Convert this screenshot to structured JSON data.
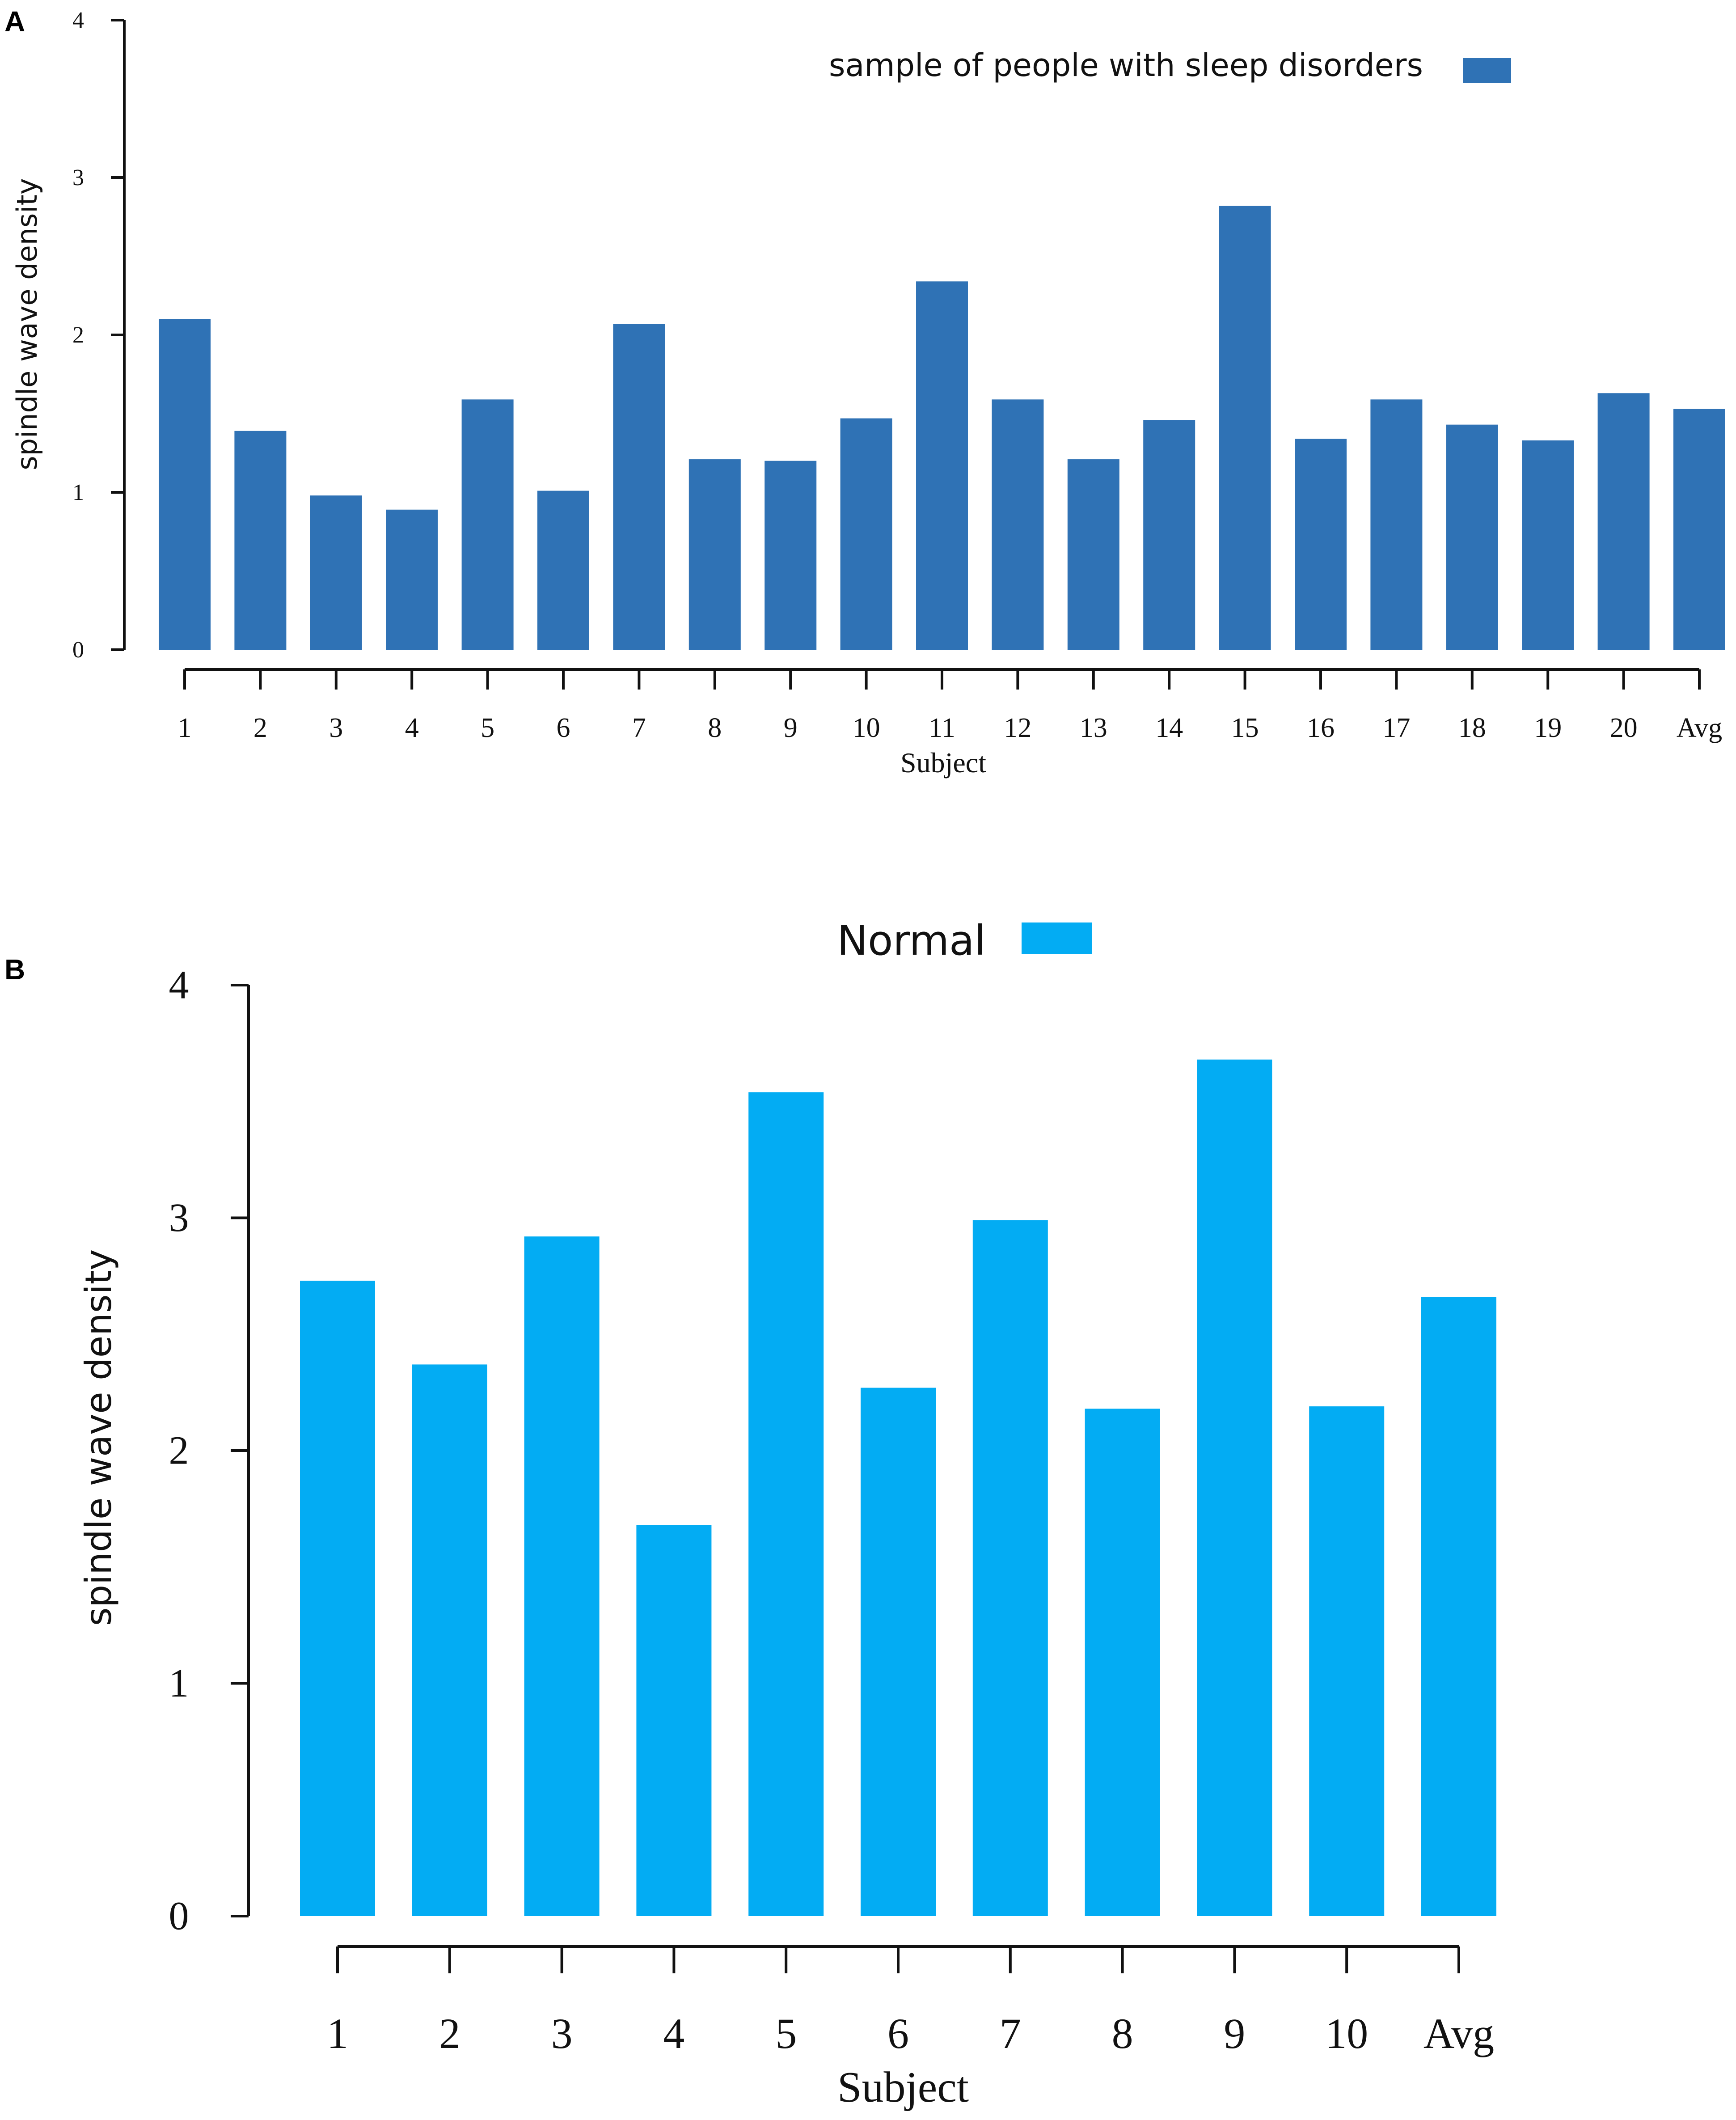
{
  "chart_data": [
    {
      "panel": "A",
      "type": "bar",
      "title": "",
      "xlabel": "Subject",
      "ylabel": "spindle wave density",
      "ylim": [
        0,
        4
      ],
      "yticks": [
        0,
        1,
        2,
        3,
        4
      ],
      "legend": {
        "label": "sample of people with sleep disorders",
        "placement": "top-right",
        "color": "#2f72b5"
      },
      "color": "#2f72b5",
      "categories": [
        "1",
        "2",
        "3",
        "4",
        "5",
        "6",
        "7",
        "8",
        "9",
        "10",
        "11",
        "12",
        "13",
        "14",
        "15",
        "16",
        "17",
        "18",
        "19",
        "20",
        "Avg"
      ],
      "values": [
        2.1,
        1.39,
        0.98,
        0.89,
        1.59,
        1.01,
        2.07,
        1.21,
        1.2,
        1.47,
        2.34,
        1.59,
        1.21,
        1.46,
        2.82,
        1.34,
        1.59,
        1.43,
        1.33,
        1.63,
        1.53
      ]
    },
    {
      "panel": "B",
      "type": "bar",
      "title": "",
      "xlabel": "Subject",
      "ylabel": "spindle wave density",
      "ylim": [
        0,
        4
      ],
      "yticks": [
        0,
        1,
        2,
        3,
        4
      ],
      "legend": {
        "label": "Normal",
        "placement": "top-center",
        "color": "#03acf3"
      },
      "color": "#03acf3",
      "categories": [
        "1",
        "2",
        "3",
        "4",
        "5",
        "6",
        "7",
        "8",
        "9",
        "10",
        "Avg"
      ],
      "values": [
        2.73,
        2.37,
        2.92,
        1.68,
        3.54,
        2.27,
        2.99,
        2.18,
        3.68,
        2.19,
        2.66
      ]
    }
  ]
}
